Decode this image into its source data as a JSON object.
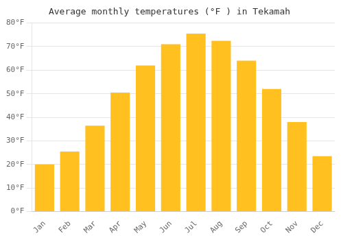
{
  "chart_data": {
    "type": "bar",
    "title": "Average monthly temperatures (°F ) in Tekamah",
    "categories": [
      "Jan",
      "Feb",
      "Mar",
      "Apr",
      "May",
      "Jun",
      "Jul",
      "Aug",
      "Sep",
      "Oct",
      "Nov",
      "Dec"
    ],
    "values": [
      20,
      25.5,
      36.5,
      50.5,
      62,
      71,
      75.5,
      72.5,
      64,
      52,
      38,
      23.5
    ],
    "color": "#FFC020",
    "ylim": [
      0,
      80
    ],
    "yticks": [
      {
        "value": 0,
        "label": "0°F"
      },
      {
        "value": 10,
        "label": "10°F"
      },
      {
        "value": 20,
        "label": "20°F"
      },
      {
        "value": 30,
        "label": "30°F"
      },
      {
        "value": 40,
        "label": "40°F"
      },
      {
        "value": 50,
        "label": "50°F"
      },
      {
        "value": 60,
        "label": "60°F"
      },
      {
        "value": 70,
        "label": "70°F"
      },
      {
        "value": 80,
        "label": "80°F"
      }
    ],
    "grid": true
  }
}
